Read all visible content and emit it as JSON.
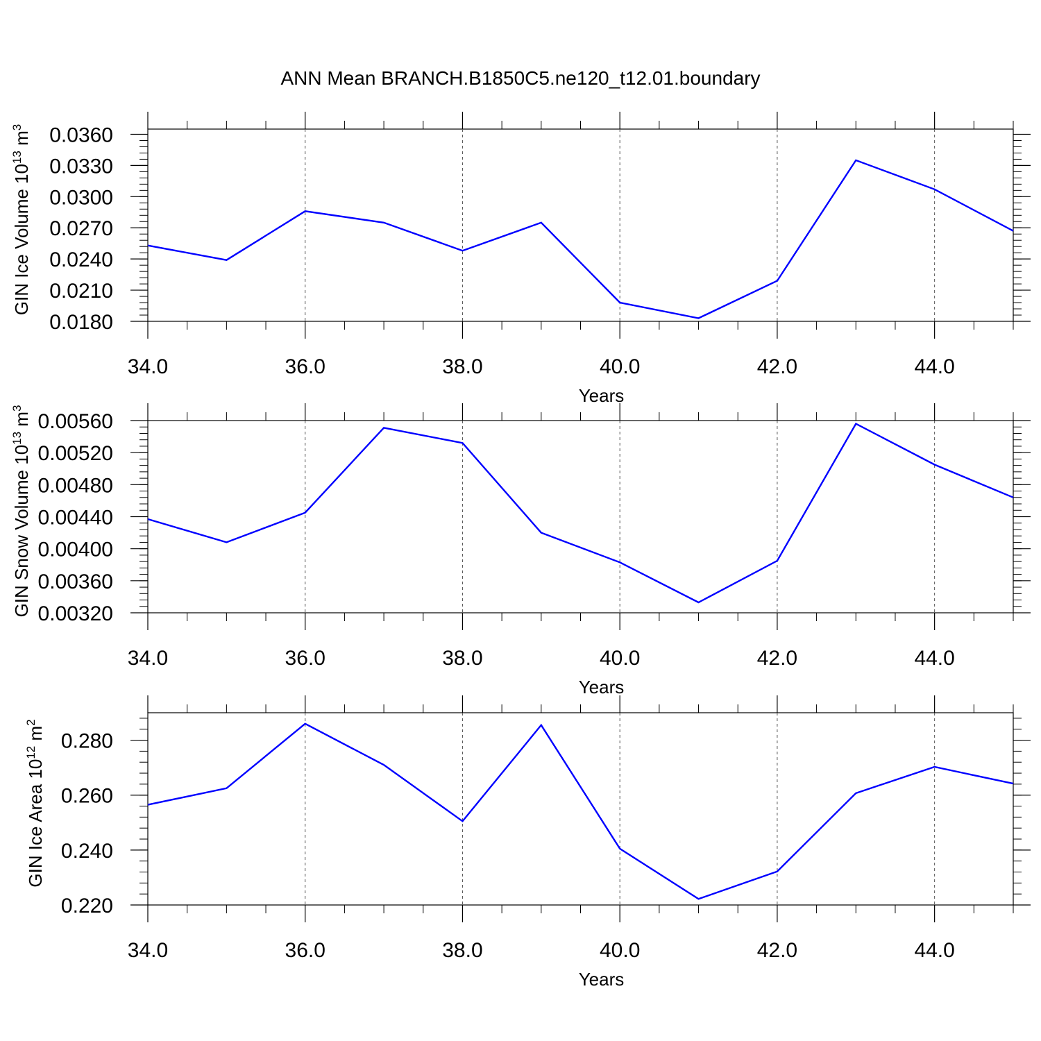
{
  "figure_title": "ANN Mean BRANCH.B1850C5.ne120_t12.01.boundary",
  "colors": {
    "line": "#0000ff",
    "axis": "#000000",
    "grid": "#555555"
  },
  "chart_data": [
    {
      "type": "line",
      "ylabel": "GIN Ice Volume 10",
      "ylabel_exp": "13",
      "ylabel_unit": " m",
      "ylabel_unit_exp": "3",
      "xlabel": "Years",
      "xlim": [
        34,
        45
      ],
      "ylim": [
        0.018,
        0.0365
      ],
      "x_ticks": [
        "34.0",
        "36.0",
        "38.0",
        "40.0",
        "42.0",
        "44.0"
      ],
      "y_ticks": [
        "0.0180",
        "0.0210",
        "0.0240",
        "0.0270",
        "0.0300",
        "0.0330",
        "0.0360"
      ],
      "grid_x": "dashed",
      "series": [
        {
          "x": [
            34,
            35,
            36,
            37,
            38,
            39,
            40,
            41,
            42,
            43,
            44,
            45
          ],
          "values": [
            0.0253,
            0.0239,
            0.0286,
            0.0275,
            0.0248,
            0.0275,
            0.0198,
            0.0183,
            0.0219,
            0.0335,
            0.0307,
            0.0267
          ]
        }
      ]
    },
    {
      "type": "line",
      "ylabel": "GIN Snow Volume 10",
      "ylabel_exp": "13",
      "ylabel_unit": " m",
      "ylabel_unit_exp": "3",
      "xlabel": "Years",
      "xlim": [
        34,
        45
      ],
      "ylim": [
        0.0032,
        0.0056
      ],
      "x_ticks": [
        "34.0",
        "36.0",
        "38.0",
        "40.0",
        "42.0",
        "44.0"
      ],
      "y_ticks": [
        "0.00320",
        "0.00360",
        "0.00400",
        "0.00440",
        "0.00480",
        "0.00520",
        "0.00560"
      ],
      "grid_x": "dashed",
      "series": [
        {
          "x": [
            34,
            35,
            36,
            37,
            38,
            39,
            40,
            41,
            42,
            43,
            44,
            45
          ],
          "values": [
            0.00437,
            0.00408,
            0.00445,
            0.00551,
            0.00532,
            0.0042,
            0.00383,
            0.00333,
            0.00385,
            0.00556,
            0.00505,
            0.00464
          ]
        }
      ]
    },
    {
      "type": "line",
      "ylabel": "GIN Ice Area 10",
      "ylabel_exp": "12",
      "ylabel_unit": " m",
      "ylabel_unit_exp": "2",
      "xlabel": "Years",
      "xlim": [
        34,
        45
      ],
      "ylim": [
        0.22,
        0.29
      ],
      "x_ticks": [
        "34.0",
        "36.0",
        "38.0",
        "40.0",
        "42.0",
        "44.0"
      ],
      "y_ticks": [
        "0.220",
        "0.240",
        "0.260",
        "0.280"
      ],
      "grid_x": "dashed",
      "series": [
        {
          "x": [
            34,
            35,
            36,
            37,
            38,
            39,
            40,
            41,
            42,
            43,
            44,
            45
          ],
          "values": [
            0.2565,
            0.2625,
            0.286,
            0.271,
            0.2505,
            0.2855,
            0.2405,
            0.2222,
            0.2322,
            0.2607,
            0.2703,
            0.2642
          ]
        }
      ]
    }
  ]
}
